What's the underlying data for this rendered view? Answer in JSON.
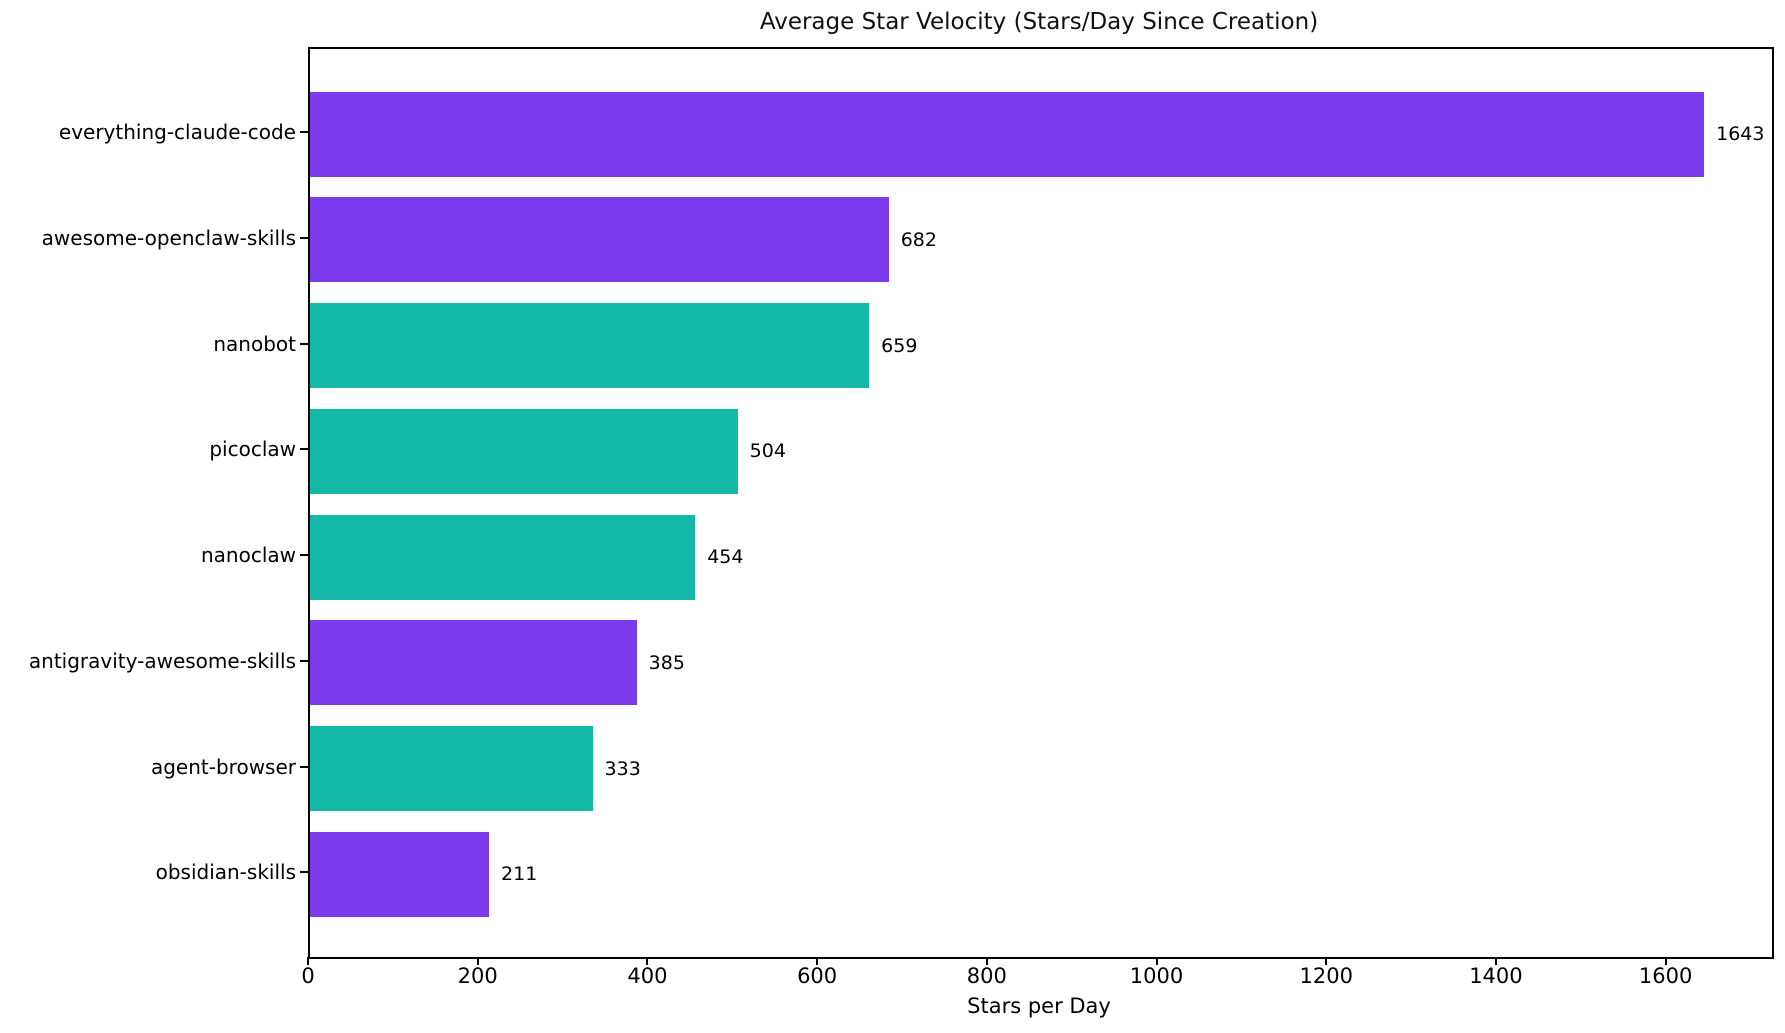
{
  "chart_data": {
    "type": "bar",
    "orientation": "horizontal",
    "title": "Average Star Velocity (Stars/Day Since Creation)",
    "xlabel": "Stars per Day",
    "ylabel": "",
    "categories": [
      "everything-claude-code",
      "awesome-openclaw-skills",
      "nanobot",
      "picoclaw",
      "nanoclaw",
      "antigravity-awesome-skills",
      "agent-browser",
      "obsidian-skills"
    ],
    "values": [
      1643,
      682,
      659,
      504,
      454,
      385,
      333,
      211
    ],
    "value_labels": [
      "1643",
      "682",
      "659",
      "504",
      "454",
      "385",
      "333",
      "211"
    ],
    "bar_colors": [
      "#7c3aed",
      "#7c3aed",
      "#14b8a6",
      "#14b8a6",
      "#14b8a6",
      "#7c3aed",
      "#14b8a6",
      "#7c3aed"
    ],
    "palette": {
      "purple": "#7c3aed",
      "teal": "#14b8a6"
    },
    "xlim": [
      0,
      1723
    ],
    "x_ticks": [
      0,
      200,
      400,
      600,
      800,
      1000,
      1200,
      1400,
      1600
    ],
    "x_tick_labels": [
      "0",
      "200",
      "400",
      "600",
      "800",
      "1000",
      "1200",
      "1400",
      "1600"
    ],
    "grid": false,
    "legend": "none",
    "spines": "all",
    "background_color": "#ffffff",
    "text_color": "#000000"
  }
}
